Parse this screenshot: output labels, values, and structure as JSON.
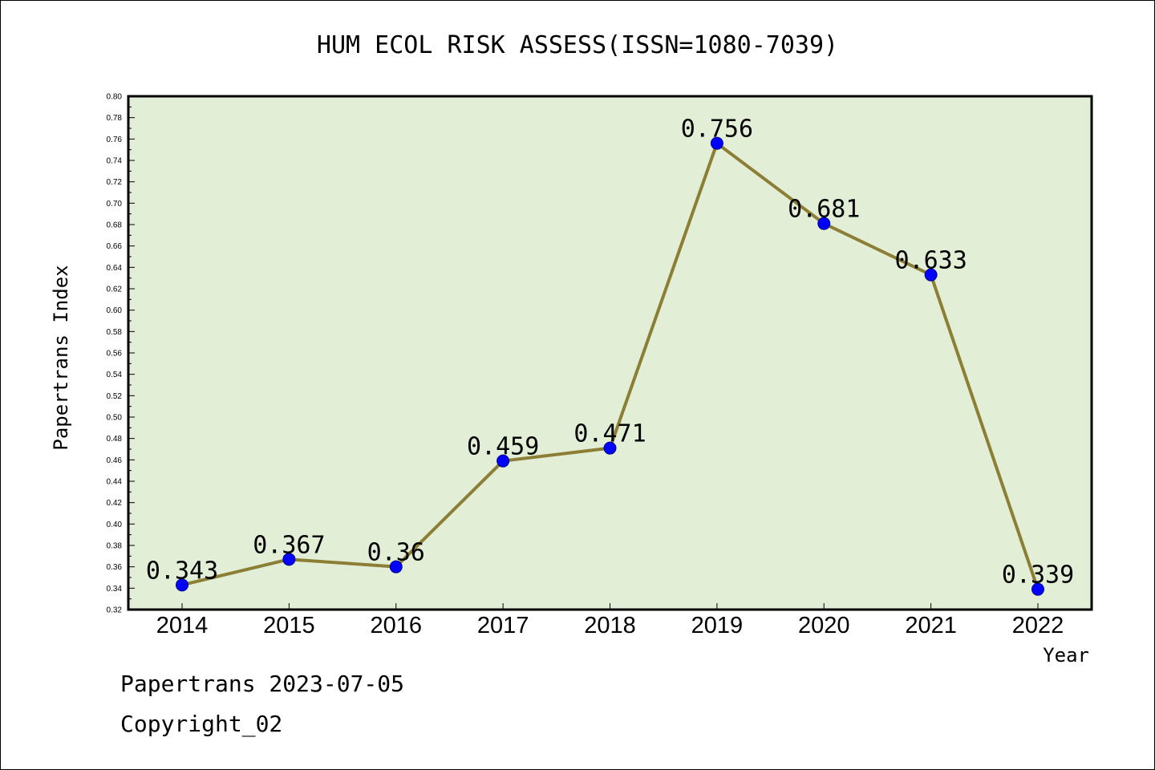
{
  "colors": {
    "plot_background": "#e2efd6",
    "line": "#8c7e35",
    "marker": "#0000ff",
    "axis": "#000000"
  },
  "chart_data": {
    "type": "line",
    "title": "HUM ECOL RISK ASSESS(ISSN=1080-7039)",
    "xlabel": "Year",
    "ylabel": "Papertrans Index",
    "categories": [
      "2014",
      "2015",
      "2016",
      "2017",
      "2018",
      "2019",
      "2020",
      "2021",
      "2022"
    ],
    "series": [
      {
        "values": [
          0.343,
          0.367,
          0.36,
          0.459,
          0.471,
          0.756,
          0.681,
          0.633,
          0.339
        ],
        "labels": [
          "0.343",
          "0.367",
          "0.36",
          "0.459",
          "0.471",
          "0.756",
          "0.681",
          "0.633",
          "0.339"
        ]
      }
    ],
    "ylim": [
      0.32,
      0.8
    ],
    "yticks": [
      "0.32",
      "0.34",
      "0.36",
      "0.38",
      "0.40",
      "0.42",
      "0.44",
      "0.46",
      "0.48",
      "0.50",
      "0.52",
      "0.54",
      "0.56",
      "0.58",
      "0.60",
      "0.62",
      "0.64",
      "0.66",
      "0.68",
      "0.70",
      "0.72",
      "0.74",
      "0.76",
      "0.78",
      "0.80"
    ],
    "grid": false,
    "legend": "none"
  },
  "footer": {
    "line1": "Papertrans 2023-07-05",
    "line2": "Copyright_02"
  }
}
